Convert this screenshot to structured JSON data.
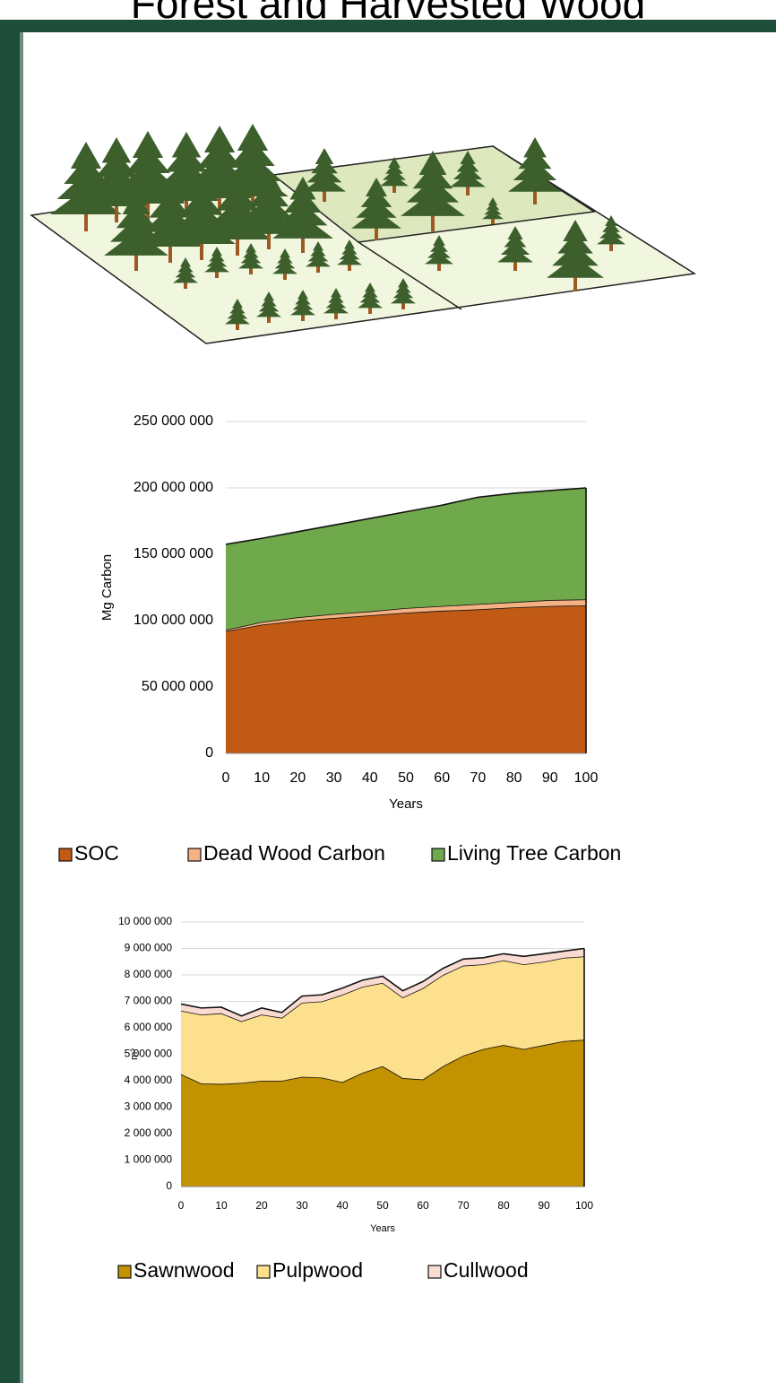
{
  "title": "Forest and Harvested Wood",
  "chart_data": [
    {
      "type": "stacked_area",
      "x_label": "Years",
      "y_label": "Mg Carbon",
      "x": [
        0,
        10,
        20,
        30,
        40,
        50,
        60,
        70,
        80,
        90,
        100
      ],
      "xlim": [
        0,
        100
      ],
      "xticks": [
        0,
        10,
        20,
        30,
        40,
        50,
        60,
        70,
        80,
        90,
        100
      ],
      "ylim": [
        0,
        250000000
      ],
      "yticks": [
        {
          "value": 0,
          "label": "0"
        },
        {
          "value": 50000000,
          "label": "50 000 000"
        },
        {
          "value": 100000000,
          "label": "100 000 000"
        },
        {
          "value": 150000000,
          "label": "150 000 000"
        },
        {
          "value": 200000000,
          "label": "200 000 000"
        },
        {
          "value": 250000000,
          "label": "250 000 000"
        }
      ],
      "grid": true,
      "series": [
        {
          "name": "SOC",
          "color": "#c05a14",
          "values": [
            92000000,
            97000000,
            100000000,
            102000000,
            104000000,
            106000000,
            107500000,
            108500000,
            110000000,
            111000000,
            111500000
          ]
        },
        {
          "name": "Dead Wood Carbon",
          "color": "#f4b183",
          "values": [
            1000000,
            2000000,
            2500000,
            3000000,
            3000000,
            3500000,
            3500000,
            4000000,
            4000000,
            4500000,
            4500000
          ]
        },
        {
          "name": "Living Tree Carbon",
          "color": "#70a84c",
          "values": [
            64500000,
            63000000,
            64500000,
            67000000,
            70000000,
            72500000,
            76000000,
            80500000,
            82000000,
            82500000,
            84000000
          ]
        }
      ]
    },
    {
      "type": "stacked_area",
      "x_label": "Years",
      "y_label": "m³",
      "x": [
        0,
        5,
        10,
        15,
        20,
        25,
        30,
        35,
        40,
        45,
        50,
        55,
        60,
        65,
        70,
        75,
        80,
        85,
        90,
        95,
        100
      ],
      "xlim": [
        0,
        100
      ],
      "xticks": [
        0,
        10,
        20,
        30,
        40,
        50,
        60,
        70,
        80,
        90,
        100
      ],
      "ylim": [
        0,
        10000000
      ],
      "yticks": [
        {
          "value": 0,
          "label": "0"
        },
        {
          "value": 1000000,
          "label": "1 000 000"
        },
        {
          "value": 2000000,
          "label": "2 000 000"
        },
        {
          "value": 3000000,
          "label": "3 000 000"
        },
        {
          "value": 4000000,
          "label": "4 000 000"
        },
        {
          "value": 5000000,
          "label": "5 000 000"
        },
        {
          "value": 6000000,
          "label": "6 000 000"
        },
        {
          "value": 7000000,
          "label": "7 000 000"
        },
        {
          "value": 8000000,
          "label": "8 000 000"
        },
        {
          "value": 9000000,
          "label": "9 000 000"
        },
        {
          "value": 10000000,
          "label": "10 000 000"
        }
      ],
      "grid": true,
      "series": [
        {
          "name": "Sawnwood",
          "color": "#c39200",
          "values": [
            4250000,
            3900000,
            3880000,
            3920000,
            4000000,
            4000000,
            4150000,
            4120000,
            3950000,
            4300000,
            4550000,
            4100000,
            4050000,
            4550000,
            4950000,
            5200000,
            5350000,
            5200000,
            5350000,
            5500000,
            5550000
          ]
        },
        {
          "name": "Pulpwood",
          "color": "#fde08e",
          "values": [
            2400000,
            2600000,
            2670000,
            2330000,
            2500000,
            2380000,
            2800000,
            2880000,
            3300000,
            3250000,
            3150000,
            3050000,
            3450000,
            3450000,
            3400000,
            3200000,
            3200000,
            3200000,
            3150000,
            3150000,
            3150000
          ]
        },
        {
          "name": "Cullwood",
          "color": "#fadbd2",
          "values": [
            250000,
            250000,
            230000,
            200000,
            250000,
            200000,
            250000,
            250000,
            250000,
            250000,
            250000,
            250000,
            250000,
            250000,
            250000,
            250000,
            250000,
            300000,
            300000,
            250000,
            300000
          ]
        }
      ]
    }
  ]
}
